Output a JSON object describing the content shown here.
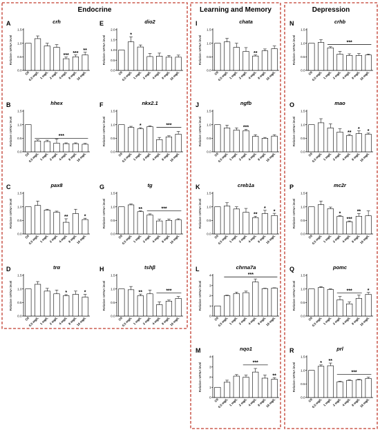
{
  "groups": [
    {
      "title": "Endocrine"
    },
    {
      "title": "Learning and Memory"
    },
    {
      "title": "Depression"
    }
  ],
  "chart_data": [
    {
      "type": "bar",
      "letter": "A",
      "title": "crh",
      "ylabel": "Relative mRNA level",
      "ylim": [
        0,
        1.5
      ],
      "yticks": [
        "0.0",
        "0.5",
        "1.0",
        "1.5"
      ],
      "categories": [
        "Ctl",
        "0.5 mg/L",
        "1 mg/L",
        "2 mg/L",
        "4 mg/L",
        "8 mg/L",
        "16 mg/L"
      ],
      "values": [
        1.0,
        1.17,
        0.9,
        0.85,
        0.43,
        0.5,
        0.57
      ],
      "errors": [
        0,
        0.1,
        0.1,
        0.1,
        0.06,
        0.07,
        0.1
      ],
      "stars": [
        "",
        "",
        "",
        "",
        "***",
        "***",
        "**"
      ]
    },
    {
      "type": "bar",
      "letter": "B",
      "title": "hhex",
      "ylabel": "Relative mRNA level",
      "ylim": [
        0,
        1.5
      ],
      "yticks": [
        "0.0",
        "0.5",
        "1.0",
        "1.5"
      ],
      "categories": [
        "Ctl",
        "0.5 mg/L",
        "1 mg/L",
        "2 mg/L",
        "4 mg/L",
        "8 mg/L",
        "16 mg/L"
      ],
      "values": [
        1.0,
        0.4,
        0.38,
        0.32,
        0.3,
        0.3,
        0.28
      ],
      "errors": [
        0,
        0.04,
        0.05,
        0.15,
        0.03,
        0.03,
        0.03
      ],
      "stars": [
        "",
        "",
        "",
        "",
        "",
        "",
        ""
      ],
      "bracket": {
        "from": 1,
        "to": 6,
        "y": 0.5,
        "label": "***"
      }
    },
    {
      "type": "bar",
      "letter": "C",
      "title": "pax8",
      "ylabel": "Relative mRNA level",
      "ylim": [
        0,
        1.5
      ],
      "yticks": [
        "0.0",
        "0.5",
        "1.0",
        "1.5"
      ],
      "categories": [
        "Ctl",
        "0.5 mg/L",
        "1 mg/L",
        "2 mg/L",
        "4 mg/L",
        "8 mg/L",
        "16 mg/L"
      ],
      "values": [
        1.0,
        1.05,
        0.88,
        0.8,
        0.43,
        0.75,
        0.53
      ],
      "errors": [
        0,
        0.16,
        0.03,
        0.04,
        0.13,
        0.16,
        0.05
      ],
      "stars": [
        "",
        "",
        "",
        "",
        "**",
        "",
        "*"
      ],
      "extraStars": [
        {
          "idx": 3,
          "label": "**"
        }
      ]
    },
    {
      "type": "bar",
      "letter": "D",
      "title": "trα",
      "ylabel": "Relative mRNA level",
      "ylim": [
        0,
        1.5
      ],
      "yticks": [
        "0.0",
        "0.5",
        "1.0",
        "1.5"
      ],
      "categories": [
        "Ctl",
        "0.5 mg/L",
        "1 mg/L",
        "2 mg/L",
        "4 mg/L",
        "8 mg/L",
        "16 mg/L"
      ],
      "values": [
        1.0,
        1.17,
        0.92,
        0.82,
        0.75,
        0.8,
        0.7
      ],
      "errors": [
        0,
        0.1,
        0.1,
        0.14,
        0.04,
        0.12,
        0.1
      ],
      "stars": [
        "",
        "",
        "",
        "",
        "*",
        "",
        "*"
      ]
    },
    {
      "type": "bar",
      "letter": "E",
      "title": "dio2",
      "ylabel": "Relative mRNA level",
      "ylim": [
        0,
        2.0
      ],
      "yticks": [
        "0.0",
        "0.5",
        "1.0",
        "1.5",
        "2.0"
      ],
      "categories": [
        "Ctl",
        "0.5 mg/L",
        "1 mg/L",
        "2 mg/L",
        "4 mg/L",
        "8 mg/L",
        "16 mg/L"
      ],
      "values": [
        1.0,
        1.4,
        1.15,
        0.68,
        0.7,
        0.65,
        0.65
      ],
      "errors": [
        0,
        0.25,
        0.1,
        0.15,
        0.15,
        0.08,
        0.1
      ],
      "stars": [
        "",
        "*",
        "",
        "",
        "",
        "",
        ""
      ]
    },
    {
      "type": "bar",
      "letter": "F",
      "title": "nkx2.1",
      "ylabel": "Relative mRNA level",
      "ylim": [
        0,
        1.5
      ],
      "yticks": [
        "0.0",
        "0.5",
        "1.0",
        "1.5"
      ],
      "categories": [
        "Ctl",
        "0.5 mg/L",
        "1 mg/L",
        "2 mg/L",
        "4 mg/L",
        "8 mg/L",
        "16 mg/L"
      ],
      "values": [
        1.0,
        0.9,
        0.85,
        0.93,
        0.45,
        0.55,
        0.65
      ],
      "errors": [
        0,
        0.04,
        0.04,
        0.03,
        0.08,
        0.04,
        0.1
      ],
      "stars": [
        "",
        "",
        "*",
        "",
        "",
        "",
        ""
      ],
      "bracket": {
        "from": 4,
        "to": 6,
        "y": 0.9,
        "label": "***"
      }
    },
    {
      "type": "bar",
      "letter": "G",
      "title": "tg",
      "ylabel": "Relative mRNA level",
      "ylim": [
        0,
        1.5
      ],
      "yticks": [
        "0.0",
        "0.5",
        "1.0",
        "1.5"
      ],
      "categories": [
        "Ctl",
        "0.5 mg/L",
        "1 mg/L",
        "2 mg/L",
        "4 mg/L",
        "8 mg/L",
        "16 mg/L"
      ],
      "values": [
        1.0,
        1.07,
        0.82,
        0.7,
        0.48,
        0.5,
        0.52
      ],
      "errors": [
        0,
        0.03,
        0.03,
        0.04,
        0.06,
        0.05,
        0.04
      ],
      "stars": [
        "",
        "",
        "**",
        "",
        "",
        "",
        ""
      ],
      "bracket": {
        "from": 3,
        "to": 6,
        "y": 0.85,
        "label": "***"
      }
    },
    {
      "type": "bar",
      "letter": "H",
      "title": "tshβ",
      "ylabel": "Relative mRNA level",
      "ylim": [
        0,
        1.5
      ],
      "yticks": [
        "0.0",
        "0.5",
        "1.0",
        "1.5"
      ],
      "categories": [
        "Ctl",
        "0.5 mg/L",
        "1 mg/L",
        "2 mg/L",
        "4 mg/L",
        "8 mg/L",
        "16 mg/L"
      ],
      "values": [
        1.0,
        0.97,
        0.75,
        0.82,
        0.42,
        0.55,
        0.65
      ],
      "errors": [
        0,
        0.12,
        0.06,
        0.14,
        0.1,
        0.04,
        0.07
      ],
      "stars": [
        "",
        "",
        "**",
        "",
        "",
        "",
        ""
      ],
      "bracket": {
        "from": 4,
        "to": 6,
        "y": 0.85,
        "label": "***"
      }
    },
    {
      "type": "bar",
      "letter": "I",
      "title": "chata",
      "ylabel": "Relative mRNA level",
      "ylim": [
        0,
        1.5
      ],
      "yticks": [
        "0.0",
        "0.5",
        "1.0",
        "1.5"
      ],
      "categories": [
        "Ctl",
        "0.5 mg/L",
        "1 mg/L",
        "2 mg/L",
        "4 mg/L",
        "8 mg/L",
        "16 mg/L"
      ],
      "values": [
        1.0,
        1.05,
        0.85,
        0.7,
        0.53,
        0.72,
        0.8
      ],
      "errors": [
        0,
        0.13,
        0.15,
        0.14,
        0.04,
        0.07,
        0.1
      ],
      "stars": [
        "",
        "",
        "",
        "",
        "**",
        "",
        ""
      ]
    },
    {
      "type": "bar",
      "letter": "J",
      "title": "ngfb",
      "ylabel": "Relative mRNA level",
      "ylim": [
        0,
        1.5
      ],
      "yticks": [
        "0.0",
        "0.5",
        "1.0",
        "1.5"
      ],
      "categories": [
        "Ctl",
        "0.5 mg/L",
        "1 mg/L",
        "2 mg/L",
        "4 mg/L",
        "8 mg/L",
        "16 mg/L"
      ],
      "values": [
        1.0,
        0.88,
        0.8,
        0.78,
        0.57,
        0.5,
        0.58
      ],
      "errors": [
        0,
        0.1,
        0.08,
        0.05,
        0.06,
        0.03,
        0.05
      ],
      "stars": [
        "",
        "",
        "",
        "***",
        "",
        "",
        ""
      ]
    },
    {
      "type": "bar",
      "letter": "K",
      "title": "creb1a",
      "ylabel": "Relative mRNA level",
      "ylim": [
        0,
        1.5
      ],
      "yticks": [
        "0.0",
        "0.5",
        "1.0",
        "1.5"
      ],
      "categories": [
        "Ctl",
        "0.5 mg/L",
        "1 mg/L",
        "2 mg/L",
        "4 mg/L",
        "8 mg/L",
        "16 mg/L"
      ],
      "values": [
        1.0,
        1.03,
        0.92,
        0.8,
        0.6,
        0.75,
        0.68
      ],
      "errors": [
        0,
        0.12,
        0.08,
        0.14,
        0.05,
        0.12,
        0.08
      ],
      "stars": [
        "",
        "",
        "",
        "",
        "**",
        "*",
        "*"
      ]
    },
    {
      "type": "bar",
      "letter": "L",
      "title": "chrna7a",
      "ylabel": "Relative mRNA level",
      "ylim": [
        0,
        4
      ],
      "yticks": [
        "0",
        "1",
        "2",
        "3",
        "4"
      ],
      "categories": [
        "Ctl",
        "0.5 mg/L",
        "1 mg/L",
        "2 mg/L",
        "4 mg/L",
        "8 mg/L",
        "16 mg/L"
      ],
      "values": [
        1.0,
        2.0,
        2.2,
        2.3,
        3.35,
        2.7,
        2.75
      ],
      "errors": [
        0,
        0.05,
        0.15,
        0.15,
        0.3,
        0.03,
        0.03
      ],
      "stars": [
        "",
        "",
        "",
        "",
        "",
        "",
        ""
      ],
      "bracket": {
        "from": 1,
        "to": 6,
        "y": 3.85,
        "label": "***"
      }
    },
    {
      "type": "bar",
      "letter": "M",
      "title": "nqo1",
      "ylabel": "Relative mRNA level",
      "ylim": [
        0,
        4
      ],
      "yticks": [
        "0",
        "1",
        "2",
        "3",
        "4"
      ],
      "categories": [
        "Ctl",
        "0.5 mg/L",
        "1 mg/L",
        "2 mg/L",
        "4 mg/L",
        "8 mg/L",
        "16 mg/L"
      ],
      "values": [
        1.0,
        1.5,
        2.1,
        2.0,
        2.5,
        1.9,
        1.8
      ],
      "errors": [
        0,
        0.2,
        0.15,
        0.2,
        0.35,
        0.3,
        0.15
      ],
      "stars": [
        "",
        "",
        "",
        "",
        "",
        "",
        "**"
      ],
      "bracket": {
        "from": 3,
        "to": 5,
        "y": 3.2,
        "label": "***"
      }
    },
    {
      "type": "bar",
      "letter": "N",
      "title": "crhb",
      "ylabel": "Relative mRNA level",
      "ylim": [
        0,
        1.5
      ],
      "yticks": [
        "0.0",
        "0.5",
        "1.0",
        "1.5"
      ],
      "categories": [
        "Ctl",
        "0.5 mg/L",
        "1 mg/L",
        "2 mg/L",
        "4 mg/L",
        "8 mg/L",
        "16 mg/L"
      ],
      "values": [
        1.0,
        1.03,
        0.83,
        0.6,
        0.55,
        0.55,
        0.57
      ],
      "errors": [
        0,
        0.1,
        0.04,
        0.1,
        0.06,
        0.07,
        0.03
      ],
      "stars": [
        "",
        "",
        "",
        "",
        "",
        "",
        ""
      ],
      "bracket": {
        "from": 2,
        "to": 6,
        "y": 0.95,
        "label": "***"
      }
    },
    {
      "type": "bar",
      "letter": "O",
      "title": "mao",
      "ylabel": "Relative mRNA level",
      "ylim": [
        0,
        1.5
      ],
      "yticks": [
        "0.0",
        "0.5",
        "1.0",
        "1.5"
      ],
      "categories": [
        "Ctl",
        "0.5 mg/L",
        "1 mg/L",
        "2 mg/L",
        "4 mg/L",
        "8 mg/L",
        "16 mg/L"
      ],
      "values": [
        1.0,
        1.07,
        0.88,
        0.73,
        0.6,
        0.67,
        0.65
      ],
      "errors": [
        0,
        0.15,
        0.15,
        0.12,
        0.04,
        0.1,
        0.04
      ],
      "stars": [
        "",
        "",
        "",
        "",
        "**",
        "*",
        "*"
      ]
    },
    {
      "type": "bar",
      "letter": "P",
      "title": "mc2r",
      "ylabel": "Relative mRNA level",
      "ylim": [
        0,
        1.5
      ],
      "yticks": [
        "0.0",
        "0.5",
        "1.0",
        "1.5"
      ],
      "categories": [
        "Ctl",
        "0.5 mg/L",
        "1 mg/L",
        "2 mg/L",
        "4 mg/L",
        "8 mg/L",
        "16 mg/L"
      ],
      "values": [
        1.0,
        1.08,
        0.93,
        0.65,
        0.45,
        0.65,
        0.67
      ],
      "errors": [
        0,
        0.13,
        0.06,
        0.03,
        0.03,
        0.1,
        0.18
      ],
      "stars": [
        "",
        "",
        "",
        "*",
        "***",
        "**",
        ""
      ]
    },
    {
      "type": "bar",
      "letter": "Q",
      "title": "pomc",
      "ylabel": "Relative mRNA level",
      "ylim": [
        0,
        1.5
      ],
      "yticks": [
        "0.0",
        "0.5",
        "1.0",
        "1.5"
      ],
      "categories": [
        "Ctl",
        "0.5 mg/L",
        "1 mg/L",
        "2 mg/L",
        "4 mg/L",
        "8 mg/L",
        "16 mg/L"
      ],
      "values": [
        1.0,
        1.05,
        0.98,
        0.6,
        0.45,
        0.65,
        0.8
      ],
      "errors": [
        0,
        0.03,
        0.02,
        0.12,
        0.07,
        0.12,
        0.07
      ],
      "stars": [
        "",
        "",
        "",
        "",
        "",
        "",
        "*"
      ],
      "bracket": {
        "from": 3,
        "to": 5,
        "y": 0.85,
        "label": "***"
      }
    },
    {
      "type": "bar",
      "letter": "R",
      "title": "prl",
      "ylabel": "Relative mRNA level",
      "ylim": [
        0,
        1.5
      ],
      "yticks": [
        "0.0",
        "0.5",
        "1.0",
        "1.5"
      ],
      "categories": [
        "Ctl",
        "0.5 mg/L",
        "1 mg/L",
        "2 mg/L",
        "4 mg/L",
        "8 mg/L",
        "16 mg/L"
      ],
      "values": [
        1.0,
        1.15,
        1.17,
        0.58,
        0.63,
        0.65,
        0.7
      ],
      "errors": [
        0,
        0.05,
        0.1,
        0.02,
        0.02,
        0.02,
        0.05
      ],
      "stars": [
        "",
        "*",
        "**",
        "",
        "",
        "",
        ""
      ],
      "bracket": {
        "from": 3,
        "to": 6,
        "y": 0.85,
        "label": "***"
      }
    }
  ]
}
